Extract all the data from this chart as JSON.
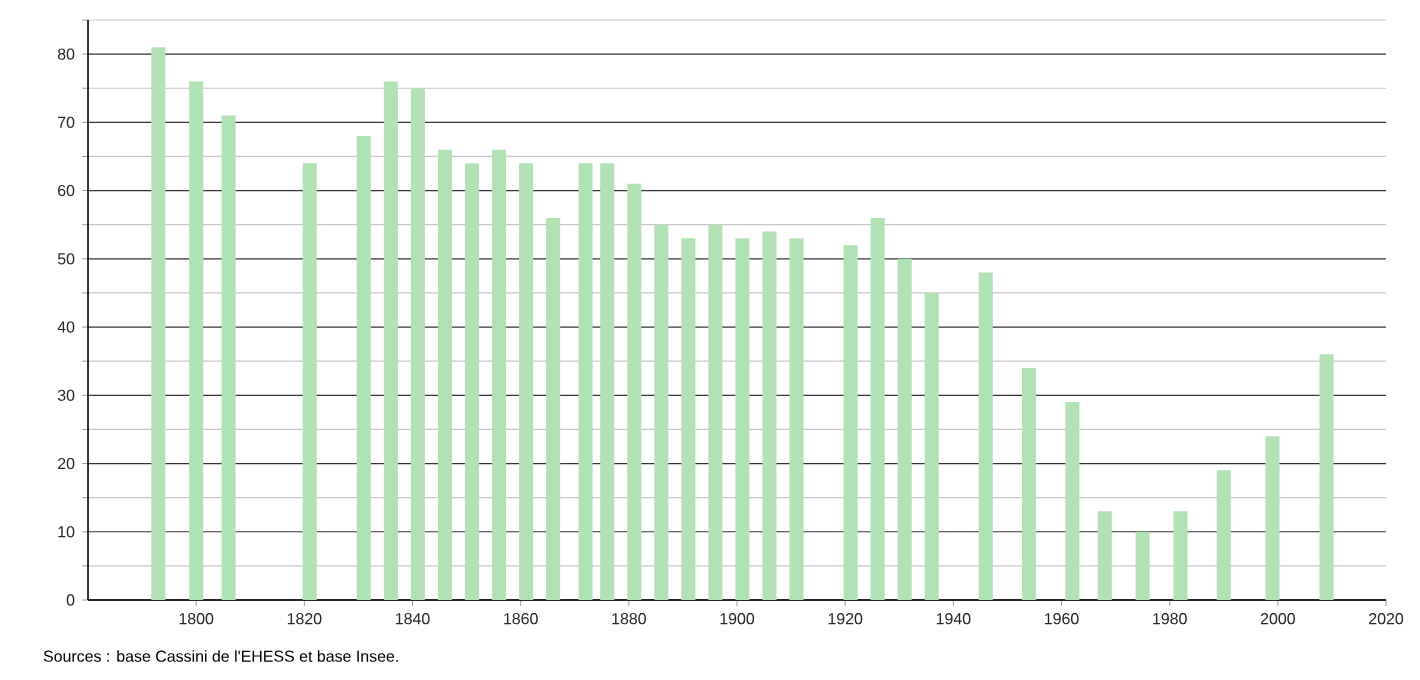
{
  "chart_data": {
    "type": "bar",
    "x": [
      1793,
      1800,
      1806,
      1821,
      1831,
      1836,
      1841,
      1846,
      1851,
      1856,
      1861,
      1866,
      1872,
      1876,
      1881,
      1886,
      1891,
      1896,
      1901,
      1906,
      1911,
      1921,
      1926,
      1931,
      1936,
      1946,
      1954,
      1962,
      1968,
      1975,
      1982,
      1990,
      1999,
      2009
    ],
    "values": [
      81,
      76,
      71,
      64,
      68,
      76,
      75,
      66,
      64,
      66,
      64,
      56,
      64,
      64,
      61,
      55,
      53,
      55,
      53,
      54,
      53,
      52,
      56,
      50,
      45,
      48,
      34,
      29,
      13,
      10,
      13,
      19,
      24,
      36
    ],
    "color": "#b0e2b4",
    "xlim": [
      1780,
      2020
    ],
    "xticks": [
      1800,
      1820,
      1840,
      1860,
      1880,
      1900,
      1920,
      1940,
      1960,
      1980,
      2000,
      2020
    ],
    "ylim": [
      0,
      85
    ],
    "yticks": [
      0,
      {
        "value": 5,
        "label": null
      },
      10,
      {
        "value": 15,
        "label": null
      },
      20,
      {
        "value": 25,
        "label": null
      },
      30,
      {
        "value": 35,
        "label": null
      },
      40,
      {
        "value": 45,
        "label": null
      },
      50,
      {
        "value": 55,
        "label": null
      },
      60,
      {
        "value": 65,
        "label": null
      },
      70,
      {
        "value": 75,
        "label": null
      },
      80,
      {
        "value": 85,
        "label": null
      }
    ],
    "grid": "y",
    "annotations": [
      "Sources : base Cassini de l'EHESS et base Insee."
    ]
  }
}
